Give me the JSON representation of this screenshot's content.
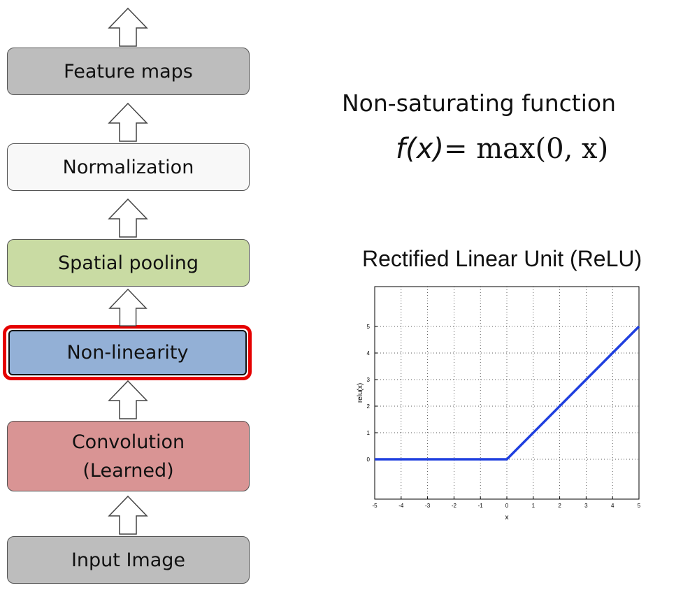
{
  "pipeline": {
    "stages": [
      {
        "label": "Feature maps",
        "line2": ""
      },
      {
        "label": "Normalization",
        "line2": ""
      },
      {
        "label": "Spatial pooling",
        "line2": ""
      },
      {
        "label": "Non-linearity",
        "line2": ""
      },
      {
        "label": "Convolution",
        "line2": "(Learned)"
      },
      {
        "label": "Input Image",
        "line2": ""
      }
    ],
    "highlighted_stage": "Non-linearity",
    "colors": {
      "grey": "#bdbdbd",
      "white": "#f8f8f8",
      "green": "#c9dba3",
      "blue": "#93b0d6",
      "red": "#d99494",
      "highlight": "#e50000"
    }
  },
  "description": {
    "subtitle": "Non-saturating function",
    "formula_lhs": "f(x)",
    "formula_rhs": "= max(0, x)"
  },
  "chart_data": {
    "type": "line",
    "title": "Rectified Linear Unit (ReLU)",
    "xlabel": "x",
    "ylabel": "relu(x)",
    "xlim": [
      -5,
      5
    ],
    "ylim": [
      -1.5,
      6.5
    ],
    "xticks": [
      -5,
      -4,
      -3,
      -2,
      -1,
      0,
      1,
      2,
      3,
      4,
      5
    ],
    "yticks": [
      0,
      1,
      2,
      3,
      4,
      5
    ],
    "grid": true,
    "series": [
      {
        "x": [
          -5,
          0,
          5
        ],
        "y": [
          0,
          0,
          5
        ],
        "color": "#1f3fdf"
      }
    ]
  }
}
